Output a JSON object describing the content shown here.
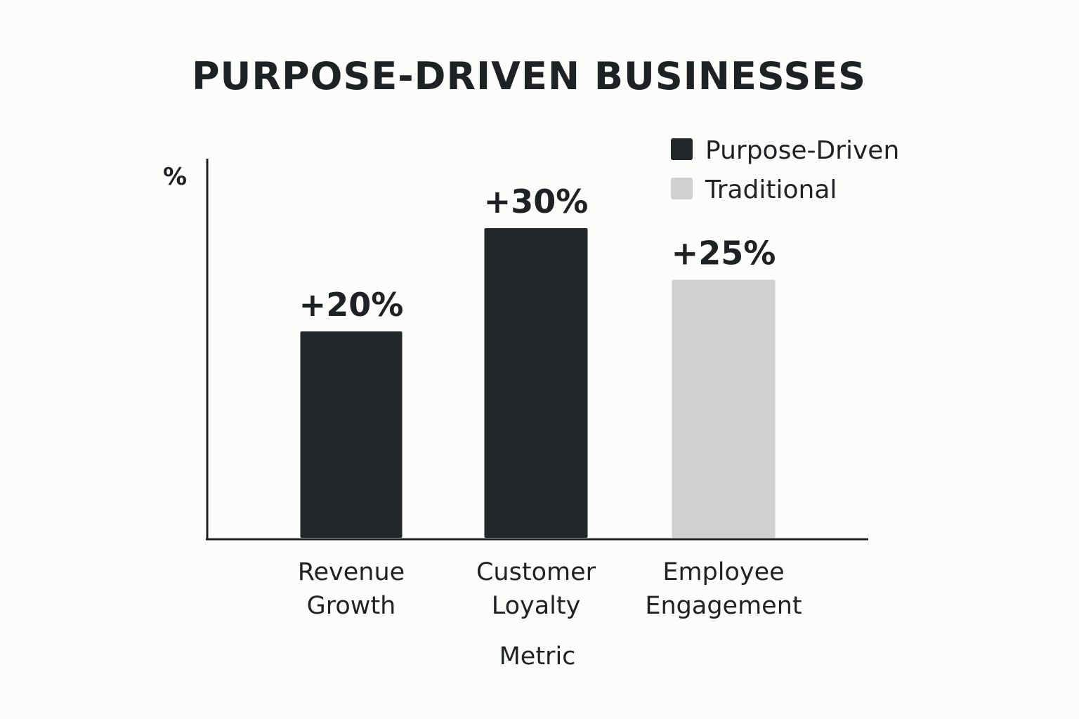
{
  "chart_data": {
    "type": "bar",
    "title": "PURPOSE-DRIVEN BUSINESSES",
    "xlabel": "Metric",
    "ylabel": "%",
    "categories": [
      "Revenue\nGrowth",
      "Customer\nLoyalty",
      "Employee\nEngagement"
    ],
    "series": [
      {
        "name": "Purpose-Driven",
        "color": "#232628",
        "values": [
          20,
          30,
          null
        ]
      },
      {
        "name": "Traditional",
        "color": "#d0d0d0",
        "values": [
          null,
          null,
          25
        ]
      }
    ],
    "data_labels": [
      "+20%",
      "+30%",
      "+25%"
    ],
    "ylim": [
      0,
      35
    ],
    "grid": false,
    "legend_position": "top-right"
  }
}
